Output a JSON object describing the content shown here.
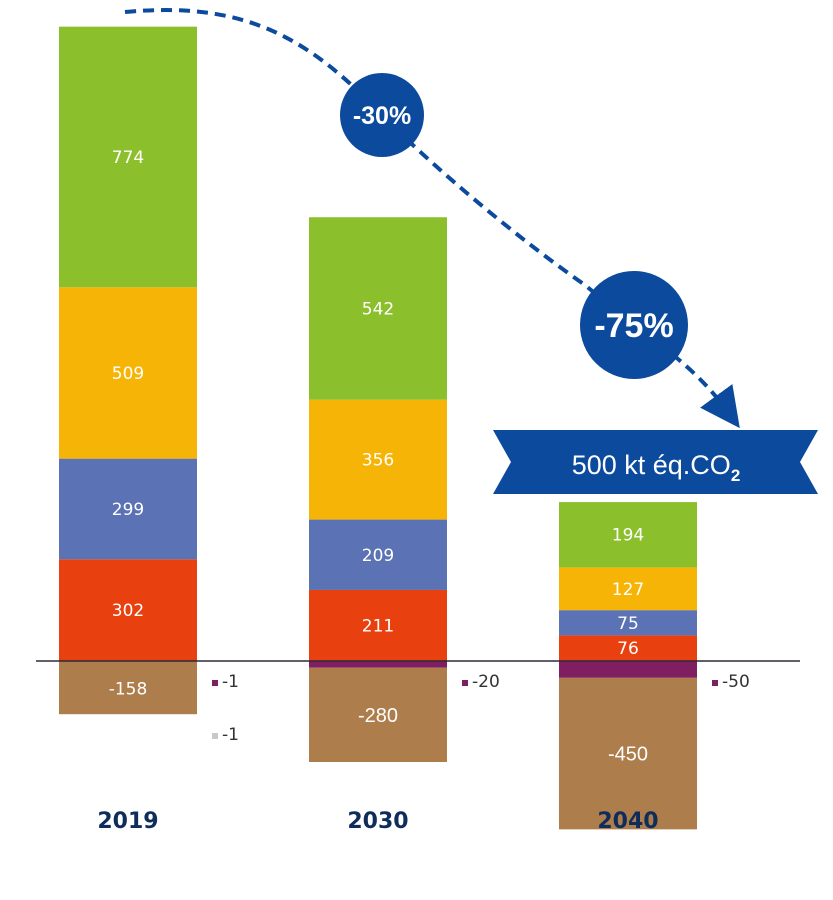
{
  "chart_data": {
    "type": "bar",
    "stacked": true,
    "categories": [
      "2019",
      "2030",
      "2040"
    ],
    "series": [
      {
        "values": [
          302,
          211,
          76
        ],
        "color": "#e8410f"
      },
      {
        "values": [
          299,
          209,
          75
        ],
        "color": "#5b72b4"
      },
      {
        "values": [
          509,
          356,
          127
        ],
        "color": "#f6b406"
      },
      {
        "values": [
          774,
          542,
          194
        ],
        "color": "#8cbf2c"
      },
      {
        "values": [
          -1,
          -20,
          -50
        ],
        "color": "#7f1f61"
      },
      {
        "values": [
          -1,
          0,
          0
        ],
        "color": "#b8b8b8"
      },
      {
        "values": [
          -158,
          -280,
          -450
        ],
        "color": "#ad7d4c"
      }
    ],
    "side_labels": [
      [
        {
          "text": "-1",
          "color": "#7f1f61"
        },
        {
          "text": "-1",
          "color": "#c8c8c8"
        }
      ],
      [
        {
          "text": "-20",
          "color": "#7f1f61"
        }
      ],
      [
        {
          "text": "-50",
          "color": "#7f1f61"
        }
      ]
    ],
    "annotations": {
      "reduction_2030": "-30%",
      "reduction_2040": "-75%",
      "target_value": "500 kt éq.CO",
      "target_subscript": "2"
    },
    "grid": false,
    "legend": "none",
    "ylim": [
      -470,
      1960
    ]
  },
  "colors": {
    "accent": "#0b4a9c",
    "ribbon": "#0b4a9c"
  }
}
